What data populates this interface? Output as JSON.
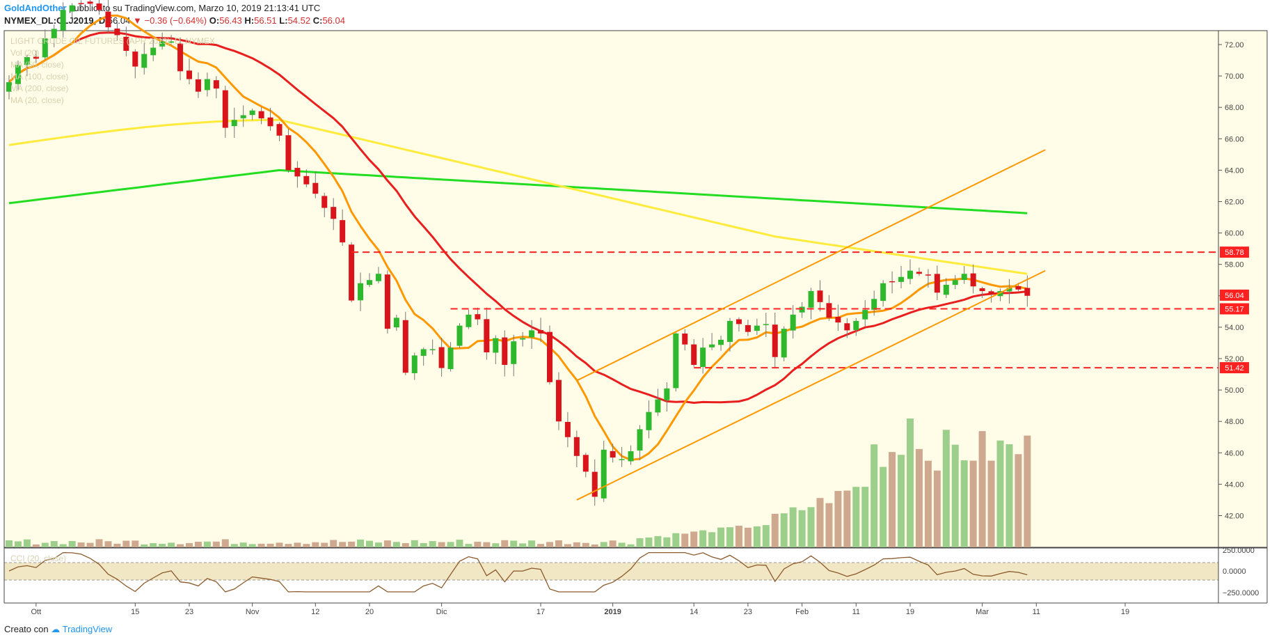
{
  "header": {
    "author": "GoldAndOther",
    "published": "pubblicato su TradingView.com, Marzo 10, 2019 21:13:41 UTC",
    "symbol": "NYMEX_DL:CLJ2019, D",
    "last": "56.04",
    "change": "−0.36 (−0.64%)",
    "o_label": "O:",
    "o": "56.43",
    "h_label": "H:",
    "h": "56.51",
    "l_label": "L:",
    "l": "54.52",
    "c_label": "C:",
    "c": "56.04",
    "down_arrow": "▼"
  },
  "legend": [
    "LIGHT CRUDE OIL FUTURES (APR 2019), D, NYMEX",
    "Vol (20)",
    "MA (50, close)",
    "MA (100, close)",
    "MA (200, close)",
    "MA (20, close)"
  ],
  "oscillator_label": "CCI (20, close)",
  "footer": {
    "created": "Creato con",
    "brand": "TradingView"
  },
  "colors": {
    "background": "#fffde7",
    "up": "#2eb82e",
    "down": "#d9141b",
    "ma20": "#ff9800",
    "ma50": "#e91e1e",
    "ma100": "#ffeb3b",
    "ma200": "#22dd22",
    "channel": "#ff9800",
    "hline": "#ff2020",
    "vol_up": "#9ccf8c",
    "vol_down": "#cfa98f",
    "osc": "#8b5a2b"
  },
  "chart_data": {
    "type": "candlestick",
    "price_axis": {
      "min": 40,
      "max": 73,
      "ticks": [
        "72.00",
        "70.00",
        "68.00",
        "66.00",
        "64.00",
        "62.00",
        "60.00",
        "58.00",
        "56.00",
        "54.00",
        "52.00",
        "50.00",
        "48.00",
        "46.00",
        "44.00",
        "42.00"
      ]
    },
    "osc_axis": {
      "ticks": [
        "250.0000",
        "0.0000",
        "−250.0000"
      ]
    },
    "x_ticks": [
      {
        "label": "Ott",
        "bold": false,
        "i": 3
      },
      {
        "label": "15",
        "bold": false,
        "i": 14
      },
      {
        "label": "23",
        "bold": false,
        "i": 20
      },
      {
        "label": "Nov",
        "bold": false,
        "i": 27
      },
      {
        "label": "12",
        "bold": false,
        "i": 34
      },
      {
        "label": "20",
        "bold": false,
        "i": 40
      },
      {
        "label": "Dic",
        "bold": false,
        "i": 48
      },
      {
        "label": "17",
        "bold": false,
        "i": 59
      },
      {
        "label": "2019",
        "bold": true,
        "i": 67
      },
      {
        "label": "14",
        "bold": false,
        "i": 76
      },
      {
        "label": "23",
        "bold": false,
        "i": 82
      },
      {
        "label": "Feb",
        "bold": false,
        "i": 88
      },
      {
        "label": "11",
        "bold": false,
        "i": 94
      },
      {
        "label": "19",
        "bold": false,
        "i": 100
      },
      {
        "label": "Mar",
        "bold": false,
        "i": 108
      },
      {
        "label": "11",
        "bold": false,
        "i": 114
      },
      {
        "label": "19",
        "bold": false,
        "i": 120
      }
    ],
    "price_labels": [
      {
        "value": 58.78,
        "text": "58.78"
      },
      {
        "value": 56.04,
        "text": "56.04"
      },
      {
        "value": 55.17,
        "text": "55.17"
      },
      {
        "value": 51.42,
        "text": "51.42"
      }
    ],
    "hlines": [
      {
        "value": 58.78,
        "from": 38,
        "to": 122
      },
      {
        "value": 55.17,
        "from": 49,
        "to": 122
      },
      {
        "value": 51.42,
        "from": 76,
        "to": 122
      }
    ],
    "channel": [
      {
        "from": [
          63,
          50.6
        ],
        "to": [
          115,
          65.3
        ]
      },
      {
        "from": [
          63,
          43.0
        ],
        "to": [
          115,
          57.6
        ]
      }
    ],
    "closes": [
      69.6,
      70.7,
      71.2,
      71.1,
      72.4,
      73.0,
      74.2,
      74.5,
      74.6,
      74.6,
      74.2,
      73.1,
      72.6,
      71.6,
      70.6,
      71.4,
      71.8,
      72.2,
      72.2,
      70.3,
      69.8,
      69.0,
      69.8,
      69.2,
      66.7,
      67.2,
      67.5,
      67.8,
      67.3,
      66.8,
      66.2,
      64.0,
      63.6,
      63.1,
      62.5,
      61.6,
      60.9,
      59.4,
      55.7,
      56.8,
      57.0,
      57.4,
      53.9,
      54.6,
      51.1,
      52.2,
      52.6,
      52.6,
      51.4,
      52.7,
      54.1,
      54.8,
      54.5,
      52.4,
      53.3,
      51.6,
      53.1,
      53.3,
      53.8,
      53.6,
      50.5,
      48.0,
      47.0,
      45.8,
      44.8,
      43.2,
      46.2,
      45.7,
      45.6,
      46.1,
      47.5,
      48.6,
      49.4,
      50.1,
      53.6,
      52.9,
      51.6,
      52.7,
      52.9,
      53.2,
      54.4,
      54.2,
      53.7,
      54.1,
      54.2,
      52.1,
      53.9,
      54.8,
      55.3,
      56.3,
      55.6,
      54.6,
      54.3,
      53.8,
      54.4,
      55.1,
      55.8,
      56.8,
      56.9,
      57.2,
      57.6,
      57.4,
      57.3,
      56.2,
      56.7,
      57.0,
      57.4,
      56.6,
      56.3,
      56.1,
      56.3,
      56.5,
      56.4,
      56.0
    ]
  }
}
